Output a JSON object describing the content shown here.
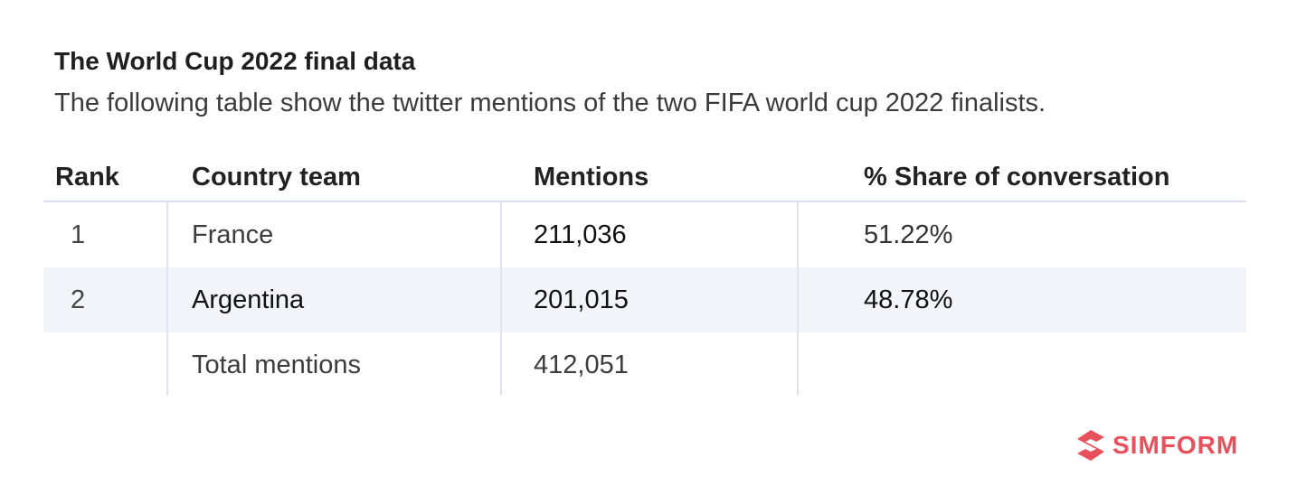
{
  "title": "The World Cup 2022 final data",
  "subtitle": "The following table show the twitter mentions of the two FIFA world cup 2022 finalists.",
  "table": {
    "headers": {
      "rank": "Rank",
      "country": "Country team",
      "mentions": "Mentions",
      "share": "% Share of conversation"
    },
    "rows": [
      {
        "rank": "1",
        "country": "France",
        "mentions": "211,036",
        "share": "51.22%"
      },
      {
        "rank": "2",
        "country": "Argentina",
        "mentions": "201,015",
        "share": "48.78%"
      }
    ],
    "total": {
      "label": "Total mentions",
      "mentions": "412,051"
    }
  },
  "brand": {
    "name": "SIMFORM",
    "icon": "simform-logo-icon",
    "color": "#e8505b"
  }
}
